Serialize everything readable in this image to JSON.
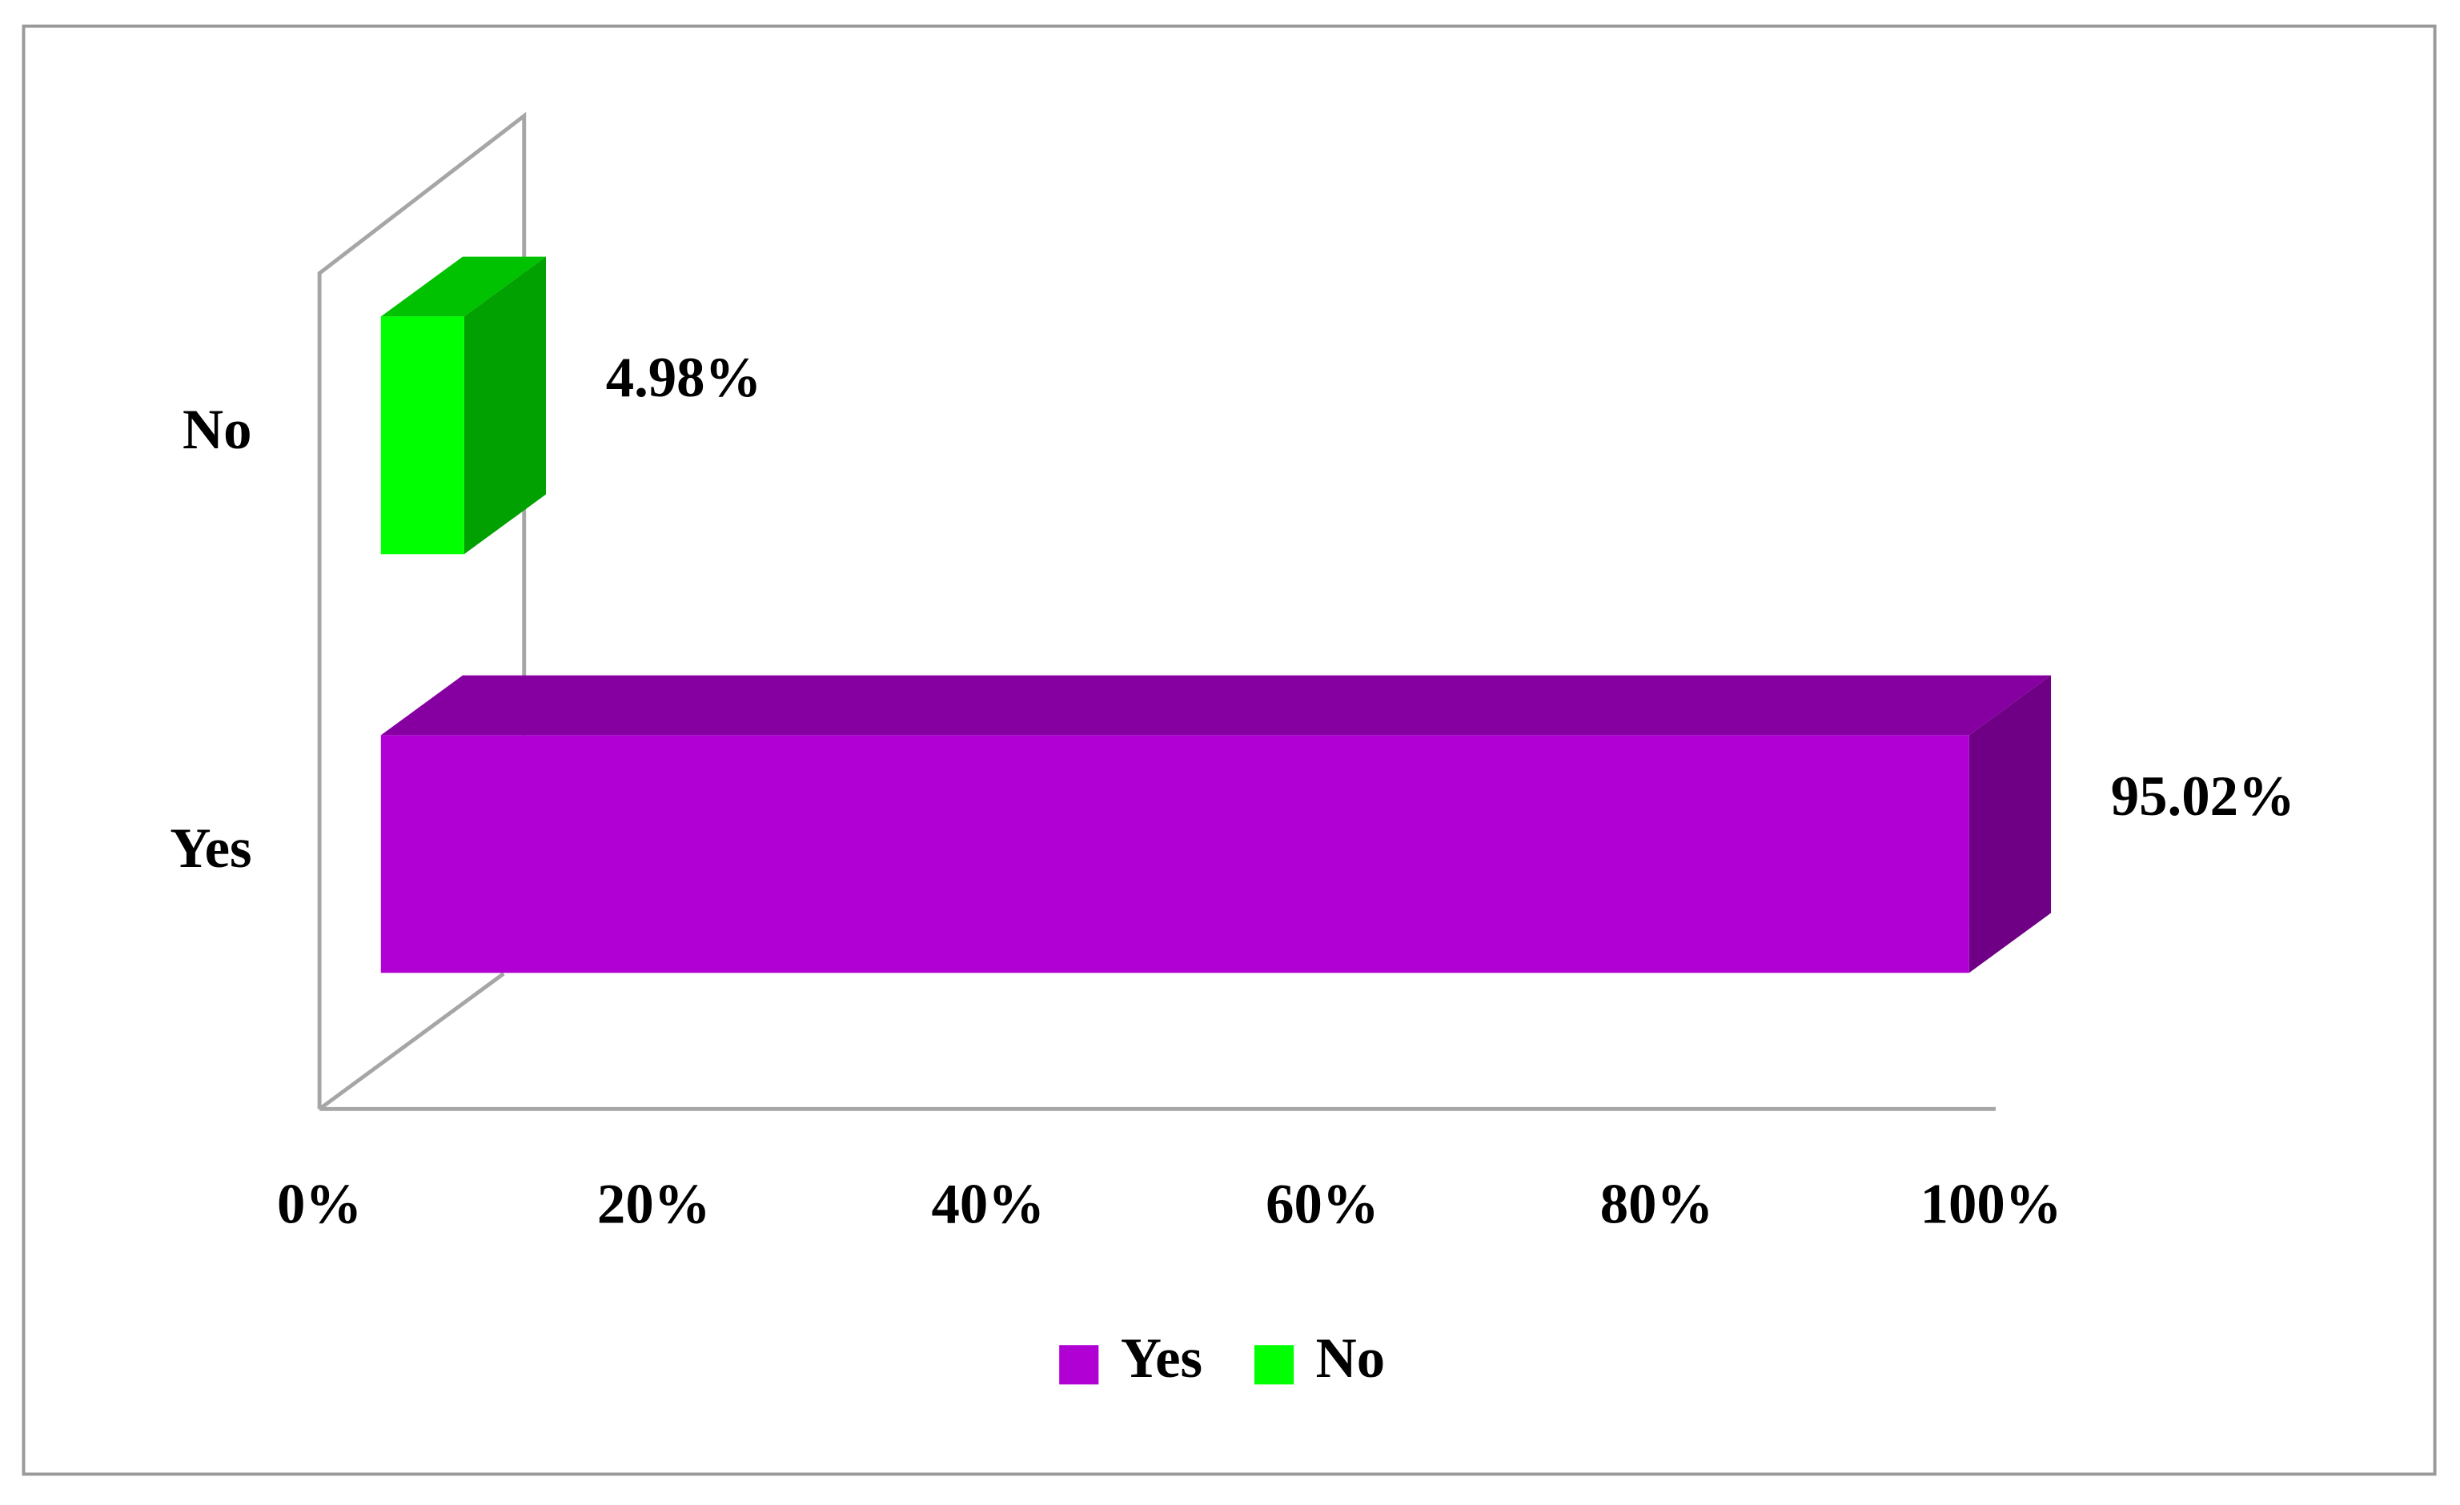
{
  "chart_data": {
    "type": "bar",
    "categories": [
      "Yes",
      "No"
    ],
    "series": [
      {
        "name": "Yes",
        "color": "#b000d4",
        "values": [
          95.02,
          null
        ],
        "value_labels": [
          "95.02%",
          null
        ]
      },
      {
        "name": "No",
        "color": "#00ff00",
        "values": [
          null,
          4.98
        ],
        "value_labels": [
          null,
          "4.98%"
        ]
      }
    ],
    "xlim": [
      0,
      100
    ],
    "xticks": [
      {
        "value": 0,
        "label": "0%"
      },
      {
        "value": 20,
        "label": "20%"
      },
      {
        "value": 40,
        "label": "40%"
      },
      {
        "value": 60,
        "label": "60%"
      },
      {
        "value": 80,
        "label": "80%"
      },
      {
        "value": 100,
        "label": "100%"
      }
    ],
    "legend": "bottom"
  }
}
